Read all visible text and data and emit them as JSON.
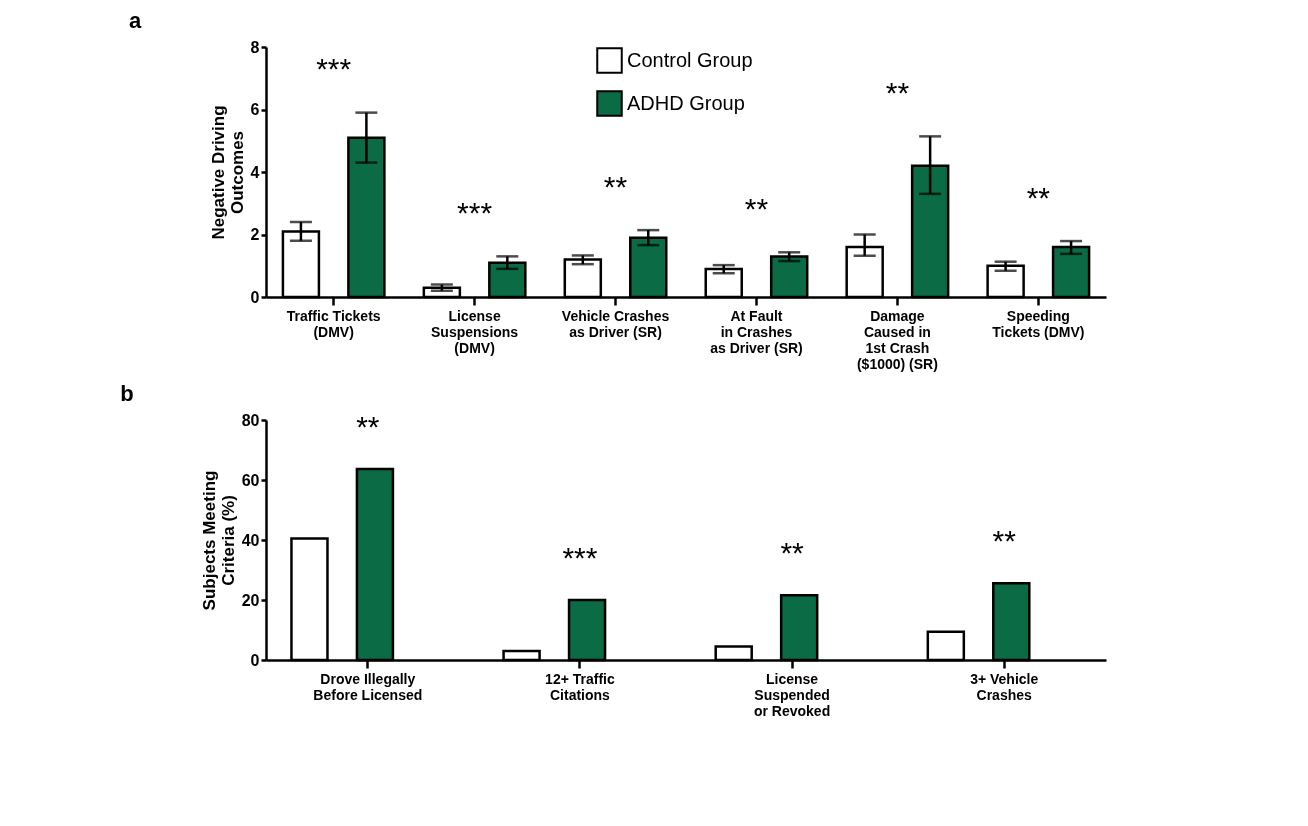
{
  "chart_data": [
    {
      "type": "bar",
      "title": "a",
      "ylabel": "Negative Driving\nOutcomes",
      "categories": [
        "Traffic Tickets\n(DMV)",
        "License\nSuspensions\n(DMV)",
        "Vehicle Crashes\nas Driver (SR)",
        "At Fault\nin Crashes\nas Driver (SR)",
        "Damage\nCaused in\n1st Crash\n($1000) (SR)",
        "Speeding\nTickets (DMV)"
      ],
      "series": [
        {
          "name": "Control Group",
          "color": "#ffffff",
          "values": [
            2.1,
            0.3,
            1.2,
            0.9,
            1.6,
            1.0
          ],
          "errors": [
            [
              1.8,
              2.4
            ],
            [
              0.2,
              0.4
            ],
            [
              1.05,
              1.33
            ],
            [
              0.76,
              1.02
            ],
            [
              1.32,
              2.0
            ],
            [
              0.84,
              1.13
            ]
          ]
        },
        {
          "name": "ADHD Group",
          "color": "#0a6b44",
          "values": [
            5.1,
            1.1,
            1.9,
            1.3,
            4.2,
            1.6
          ],
          "errors": [
            [
              4.3,
              5.9
            ],
            [
              0.9,
              1.3
            ],
            [
              1.66,
              2.14
            ],
            [
              1.15,
              1.43
            ],
            [
              3.3,
              5.14
            ],
            [
              1.38,
              1.79
            ]
          ]
        }
      ],
      "ylim": [
        0,
        8
      ],
      "yticks": [
        0,
        2,
        4,
        6,
        8
      ],
      "grid": false,
      "legend": "top",
      "annotations": [
        "***",
        "***",
        "**",
        "**",
        "**",
        "**"
      ]
    },
    {
      "type": "bar",
      "title": "b",
      "ylabel": "Subjects Meeting\nCriteria (%)",
      "categories": [
        "Drove Illegally\nBefore Licensed",
        "12+ Traffic\nCitations",
        "License\nSuspended\nor Revoked",
        "3+ Vehicle\nCrashes"
      ],
      "series": [
        {
          "name": "Control Group",
          "color": "#ffffff",
          "values": [
            40.5,
            3,
            4.5,
            9.4
          ]
        },
        {
          "name": "ADHD Group",
          "color": "#0a6b44",
          "values": [
            63.7,
            20,
            21.6,
            25.6
          ]
        }
      ],
      "ylim": [
        0,
        80
      ],
      "yticks": [
        0,
        20,
        40,
        60,
        80
      ],
      "grid": false,
      "legend": "top",
      "annotations": [
        "**",
        "***",
        "**",
        "**"
      ]
    }
  ]
}
